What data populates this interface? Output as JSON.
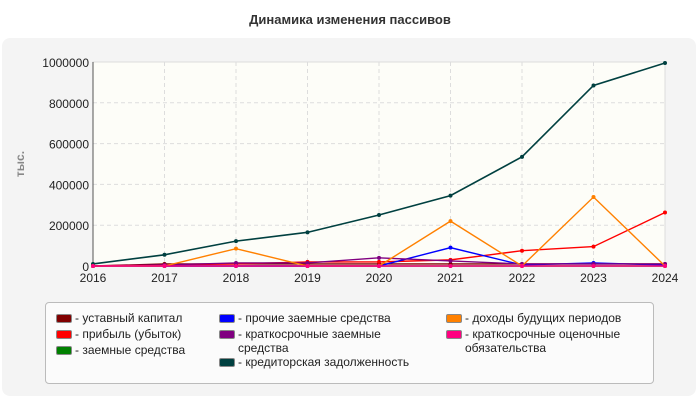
{
  "chart_data": {
    "type": "line",
    "title": "Динамика изменения пассивов",
    "ylabel": "тыс.",
    "xlabel": "",
    "x": [
      "2016",
      "2017",
      "2018",
      "2019",
      "2020",
      "2021",
      "2022",
      "2023",
      "2024"
    ],
    "ylim": [
      0,
      1000000
    ],
    "yticks": [
      "0",
      "200000",
      "400000",
      "600000",
      "800000",
      "1000000"
    ],
    "grid": true,
    "legend_placement": "bottom",
    "series": [
      {
        "name": "уставный капитал",
        "color": "#800000",
        "values": [
          0,
          10000,
          10000,
          10000,
          10000,
          10000,
          10000,
          10000,
          10000
        ]
      },
      {
        "name": "прибыль (убыток)",
        "color": "#ff0000",
        "values": [
          0,
          5000,
          10000,
          20000,
          20000,
          30000,
          75000,
          95000,
          262000
        ]
      },
      {
        "name": "заемные средства",
        "color": "#008000",
        "values": [
          0,
          0,
          0,
          0,
          0,
          0,
          0,
          0,
          0
        ]
      },
      {
        "name": "прочие заемные средства",
        "color": "#0000ff",
        "values": [
          0,
          0,
          0,
          0,
          0,
          90000,
          5000,
          15000,
          5000
        ]
      },
      {
        "name": "краткосрочные заемные средства",
        "color": "#800080",
        "values": [
          0,
          5000,
          15000,
          15000,
          40000,
          25000,
          10000,
          10000,
          10000
        ]
      },
      {
        "name": "кредиторская задолженность",
        "color": "#004040",
        "values": [
          10000,
          55000,
          122000,
          165000,
          250000,
          345000,
          535000,
          885000,
          995000
        ]
      },
      {
        "name": "доходы будущих периодов",
        "color": "#ff8000",
        "values": [
          0,
          0,
          85000,
          0,
          0,
          220000,
          0,
          338000,
          0
        ]
      },
      {
        "name": "краткосрочные оценочные обязательства",
        "color": "#ff0080",
        "values": [
          0,
          0,
          0,
          0,
          0,
          0,
          0,
          0,
          0
        ]
      }
    ]
  }
}
